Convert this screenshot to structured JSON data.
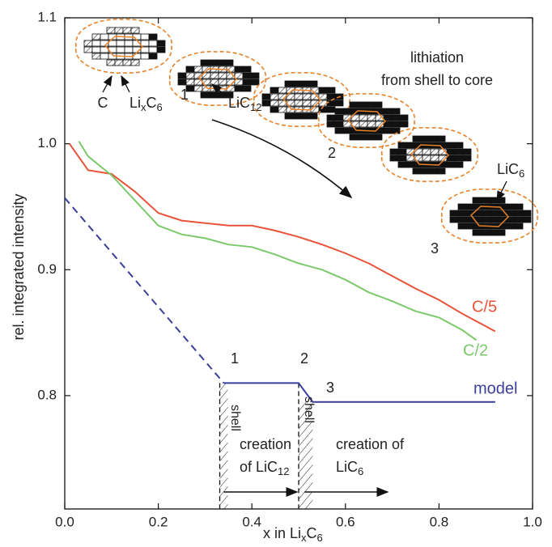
{
  "chart_data": {
    "type": "line",
    "y_label": "rel. integrated intensity",
    "x_label": [
      "x in Li",
      "x",
      "C",
      "6"
    ],
    "xlim": [
      0,
      1
    ],
    "ylim": [
      0.71,
      1.1
    ],
    "xticks": [
      {
        "value": 0,
        "label": "0.0"
      },
      0.2,
      0.4,
      0.6,
      0.8,
      {
        "value": 1,
        "label": "1.0"
      }
    ],
    "yticks": [
      0.8,
      0.9,
      {
        "value": 1,
        "label": "1.0"
      },
      1.1
    ],
    "series": [
      {
        "name": "C/5",
        "color": "#e8533a",
        "x": [
          0.01,
          0.05,
          0.1,
          0.15,
          0.2,
          0.25,
          0.3,
          0.35,
          0.4,
          0.45,
          0.5,
          0.55,
          0.6,
          0.65,
          0.7,
          0.75,
          0.8,
          0.85,
          0.9,
          0.92
        ],
        "values": [
          1.0,
          0.979,
          0.976,
          0.962,
          0.945,
          0.939,
          0.937,
          0.935,
          0.935,
          0.931,
          0.926,
          0.92,
          0.913,
          0.905,
          0.895,
          0.885,
          0.876,
          0.865,
          0.855,
          0.851
        ]
      },
      {
        "name": "C/2",
        "color": "#7cc96b",
        "x": [
          0.03,
          0.05,
          0.1,
          0.15,
          0.2,
          0.25,
          0.3,
          0.35,
          0.4,
          0.45,
          0.5,
          0.55,
          0.6,
          0.65,
          0.7,
          0.75,
          0.8,
          0.85,
          0.88
        ],
        "values": [
          1.002,
          0.99,
          0.975,
          0.955,
          0.935,
          0.928,
          0.925,
          0.92,
          0.918,
          0.912,
          0.905,
          0.9,
          0.892,
          0.882,
          0.875,
          0.867,
          0.862,
          0.852,
          0.844
        ]
      },
      {
        "name": "model",
        "color": "#3b3f9a",
        "x": [
          0.34,
          0.5,
          0.53,
          0.92
        ],
        "values": [
          0.81,
          0.81,
          0.795,
          0.795
        ]
      },
      {
        "color": "#3b3f9a",
        "dashed": true,
        "x": [
          0,
          0.34
        ],
        "values": [
          0.957,
          0.81
        ]
      }
    ],
    "annotations": [
      [
        [
          "lithiation"
        ],
        [
          "from shell to core"
        ]
      ],
      [
        [
          "C"
        ]
      ],
      [
        [
          "Li",
          "x",
          "C",
          "6"
        ]
      ],
      [
        [
          "1"
        ]
      ],
      [
        [
          "LiC",
          "12"
        ]
      ],
      [
        [
          "2"
        ]
      ],
      [
        [
          "LiC",
          "6"
        ]
      ],
      [
        [
          "3"
        ]
      ],
      [
        [
          "1"
        ]
      ],
      [
        [
          "2"
        ]
      ],
      [
        [
          "3"
        ]
      ],
      [
        [
          "shell"
        ]
      ],
      [
        [
          "shell"
        ]
      ],
      [
        [
          "creation"
        ],
        [
          "of LiC",
          "12"
        ]
      ],
      [
        [
          "creation of"
        ],
        [
          "LiC",
          "6"
        ]
      ]
    ]
  }
}
